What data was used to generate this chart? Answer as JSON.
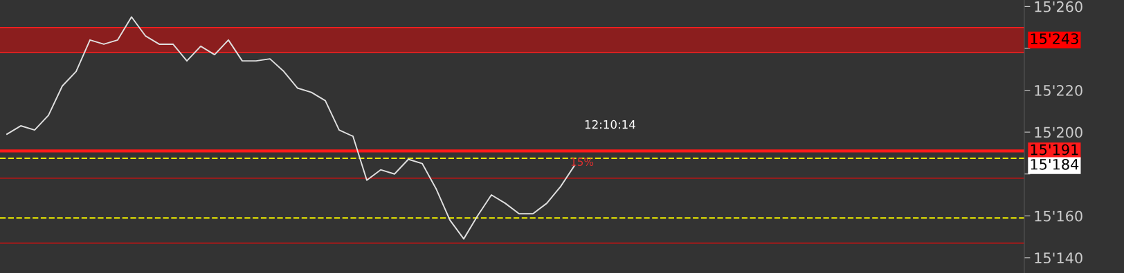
{
  "chart_data": {
    "type": "line",
    "categories": [
      null,
      null,
      null,
      null,
      null,
      null,
      null,
      null,
      null,
      null,
      null,
      null,
      null,
      null,
      null,
      null,
      null,
      null,
      null,
      null,
      null,
      null,
      null,
      null,
      null,
      null,
      null,
      null,
      null,
      null,
      null,
      null,
      null,
      null,
      null,
      null,
      null,
      null,
      null,
      null,
      null,
      null,
      null,
      null,
      null,
      null,
      null,
      null,
      null,
      null,
      null,
      null,
      null,
      null,
      null,
      null,
      null,
      null,
      null,
      null,
      null,
      null,
      null,
      null,
      null,
      null,
      null,
      null,
      null,
      null,
      null,
      null,
      null,
      null
    ],
    "series": [
      {
        "color": "#e0e0e0",
        "values": [
          15199,
          15203,
          15201,
          15208,
          15222,
          15229,
          15244,
          15242,
          15244,
          15255,
          15246,
          15242,
          15242,
          15234,
          15241,
          15237,
          15244,
          15234,
          15234,
          15235,
          15229,
          15221,
          15219,
          15215,
          15201,
          15198,
          15177,
          15182,
          15180,
          15187,
          15185,
          15173,
          15158,
          15149,
          15160,
          15170,
          15166,
          15161,
          15161,
          15166,
          15174,
          15184,
          null,
          null,
          null,
          null,
          null,
          null,
          null,
          null,
          null,
          null,
          null,
          null,
          null,
          null,
          null,
          null,
          null,
          null,
          null,
          null,
          null,
          null,
          null,
          null,
          null,
          null,
          null,
          null,
          null,
          null,
          null,
          null
        ]
      }
    ],
    "ylim": [
      15132.7,
      15263.1
    ],
    "yticks": [
      {
        "value": 15140,
        "label": "15'140"
      },
      {
        "value": 15160,
        "label": "15'160"
      },
      {
        "value": 15180,
        "label": null
      },
      {
        "value": 15200,
        "label": "15'200"
      },
      {
        "value": 15220,
        "label": "15'220"
      },
      {
        "value": 15240,
        "label": null
      },
      {
        "value": 15260,
        "label": "15'260"
      }
    ],
    "bands": [
      {
        "axis": "y",
        "from": 15238,
        "to": 15250,
        "label": "15'243",
        "color": "#8b1e1e"
      }
    ],
    "ref_lines": [
      {
        "axis": "y",
        "value": 15191,
        "label": "15'191",
        "color": "#ff1a1a",
        "line_style": "solid"
      },
      {
        "axis": "y",
        "value": 15238,
        "color": "#ff2020",
        "line_style": "solid"
      },
      {
        "axis": "y",
        "value": 15250,
        "color": "#ff2020",
        "line_style": "solid"
      },
      {
        "axis": "y",
        "value": 15178,
        "color": "#d01010",
        "line_style": "solid"
      },
      {
        "axis": "y",
        "value": 15147,
        "color": "#d01010",
        "line_style": "solid"
      },
      {
        "axis": "y",
        "value": 15187.5,
        "color": "#e6e600",
        "line_style": "dashed"
      },
      {
        "axis": "y",
        "value": 15159,
        "color": "#e6e600",
        "line_style": "dashed"
      }
    ],
    "annotations": [
      "12:10:14",
      "15%",
      "15'184"
    ],
    "grid": false,
    "legend": false,
    "marker": "none",
    "line_style": "solid"
  }
}
